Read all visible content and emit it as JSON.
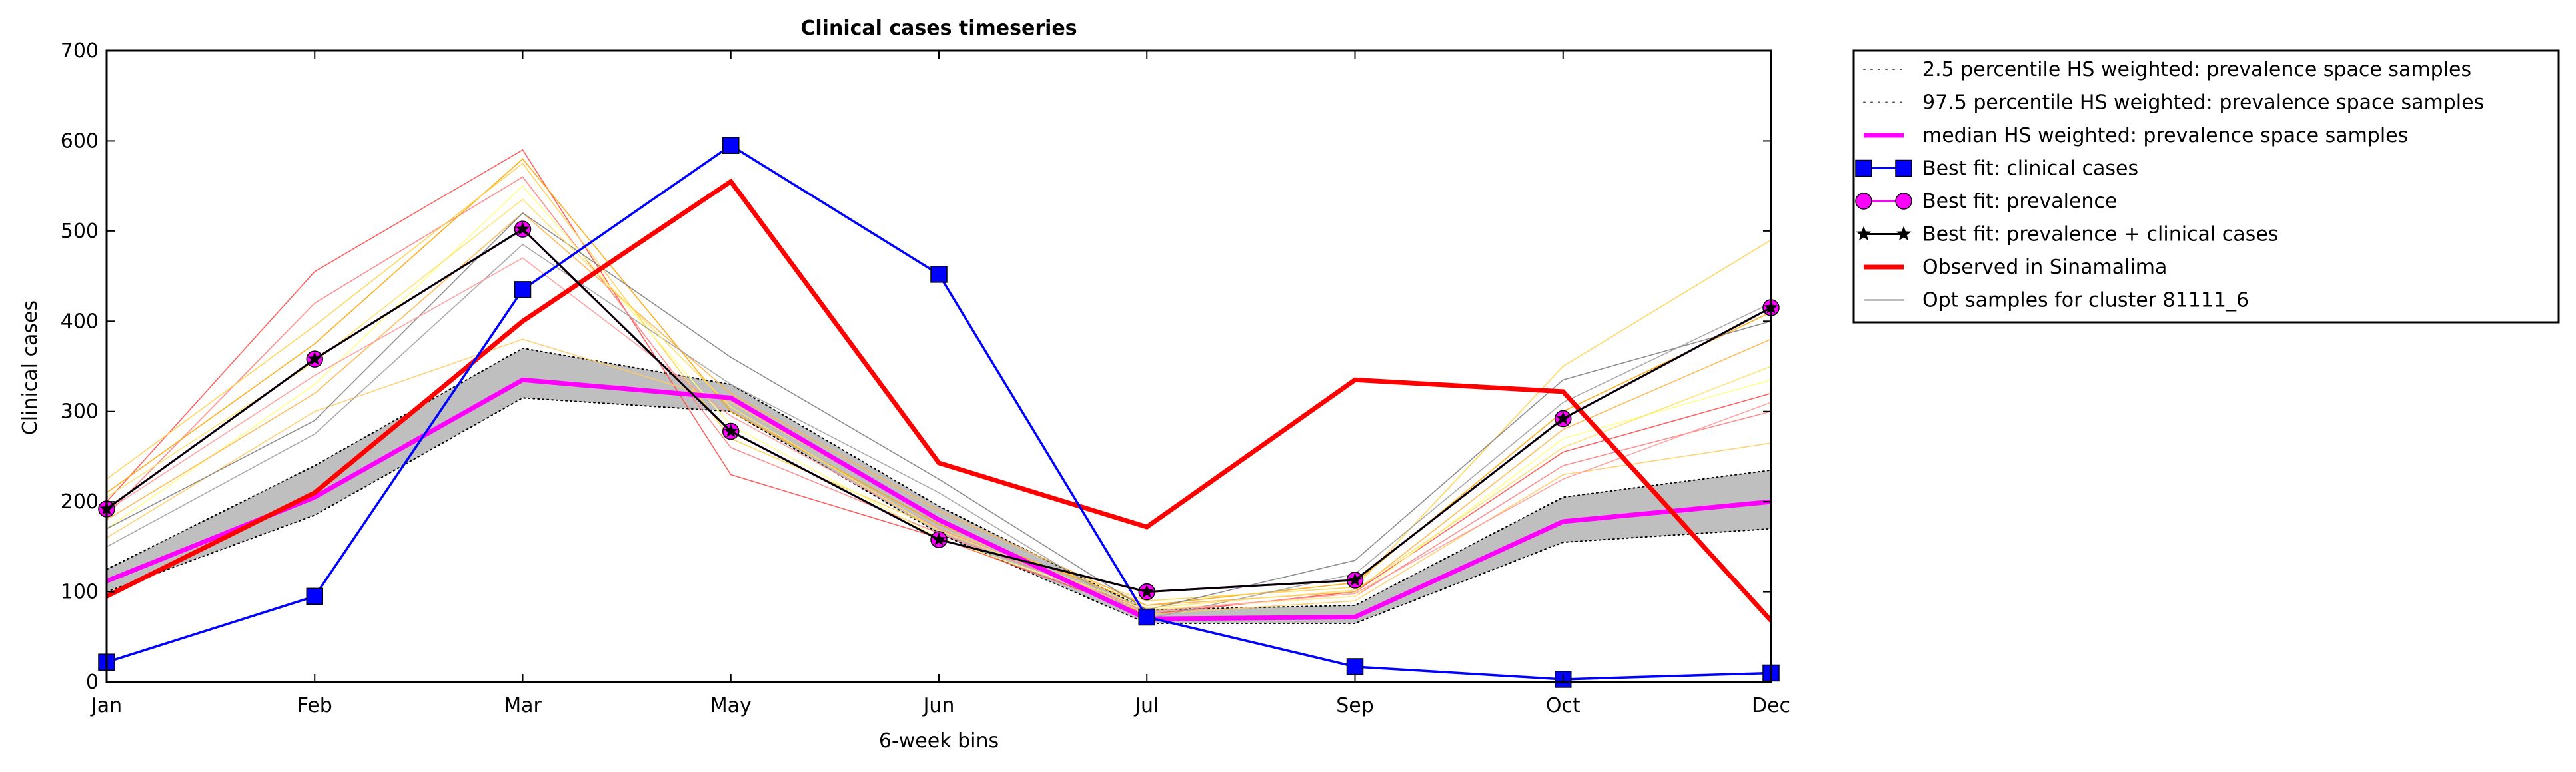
{
  "chart_data": {
    "type": "line",
    "title": "Clinical cases timeseries",
    "xlabel": "6-week bins",
    "ylabel": "Clinical cases",
    "categories": [
      "Jan",
      "Feb",
      "Mar",
      "May",
      "Jun",
      "Jul",
      "Sep",
      "Oct",
      "Dec"
    ],
    "ylim": [
      0,
      700
    ],
    "yticks": [
      0,
      100,
      200,
      300,
      400,
      500,
      600,
      700
    ],
    "grid": false,
    "legend_position": "outside-right-top",
    "band": {
      "lower_name": "2.5 percentile HS weighted: prevalence space samples",
      "upper_name": "97.5 percentile HS weighted: prevalence space samples",
      "lower": [
        100,
        185,
        315,
        300,
        165,
        65,
        65,
        155,
        170
      ],
      "upper": [
        125,
        240,
        370,
        330,
        195,
        80,
        85,
        205,
        235
      ],
      "fill_color": "#bfbfbf"
    },
    "opt_samples": {
      "name": "Opt samples for cluster 81111_6",
      "legend_color": "#808080",
      "lines": [
        {
          "color": "#ff4d4d",
          "values": [
            200,
            455,
            590,
            230,
            160,
            75,
            100,
            255,
            320
          ]
        },
        {
          "color": "#ff8080",
          "values": [
            185,
            420,
            560,
            260,
            165,
            80,
            95,
            240,
            300
          ]
        },
        {
          "color": "#ffa500",
          "values": [
            210,
            375,
            580,
            300,
            175,
            85,
            110,
            300,
            410
          ]
        },
        {
          "color": "#ffd24d",
          "values": [
            225,
            395,
            575,
            270,
            170,
            90,
            105,
            350,
            490
          ]
        },
        {
          "color": "#ffff80",
          "values": [
            170,
            330,
            550,
            285,
            160,
            80,
            95,
            270,
            335
          ]
        },
        {
          "color": "#ffcc66",
          "values": [
            160,
            300,
            380,
            310,
            180,
            75,
            90,
            230,
            265
          ]
        },
        {
          "color": "#ffb347",
          "values": [
            180,
            320,
            520,
            320,
            190,
            85,
            100,
            280,
            380
          ]
        },
        {
          "color": "#808080",
          "values": [
            170,
            290,
            520,
            360,
            225,
            80,
            135,
            335,
            400
          ]
        },
        {
          "color": "#a0a0a0",
          "values": [
            150,
            275,
            485,
            330,
            210,
            70,
            120,
            310,
            420
          ]
        },
        {
          "color": "#ff9999",
          "values": [
            190,
            340,
            470,
            295,
            170,
            78,
            98,
            225,
            310
          ]
        },
        {
          "color": "#ffe066",
          "values": [
            205,
            355,
            535,
            305,
            168,
            82,
            102,
            260,
            350
          ]
        }
      ]
    },
    "series": [
      {
        "name": "median HS weighted: prevalence space samples",
        "color": "#ff00ff",
        "values": [
          112,
          205,
          335,
          315,
          180,
          70,
          72,
          178,
          200
        ]
      },
      {
        "name": "Best fit: clinical cases",
        "color": "#0000ff",
        "values": [
          22,
          95,
          435,
          595,
          452,
          72,
          17,
          3,
          10
        ]
      },
      {
        "name": "Best fit: prevalence",
        "color": "#ff00ff",
        "values": [
          192,
          358,
          502,
          278,
          158,
          100,
          113,
          292,
          415
        ]
      },
      {
        "name": "Best fit: prevalence + clinical cases",
        "color": "#000000",
        "values": [
          192,
          358,
          502,
          278,
          158,
          100,
          113,
          292,
          415
        ]
      },
      {
        "name": "Observed in Sinamalima",
        "color": "#ff0000",
        "values": [
          95,
          210,
          400,
          555,
          243,
          172,
          335,
          322,
          68
        ]
      }
    ]
  }
}
